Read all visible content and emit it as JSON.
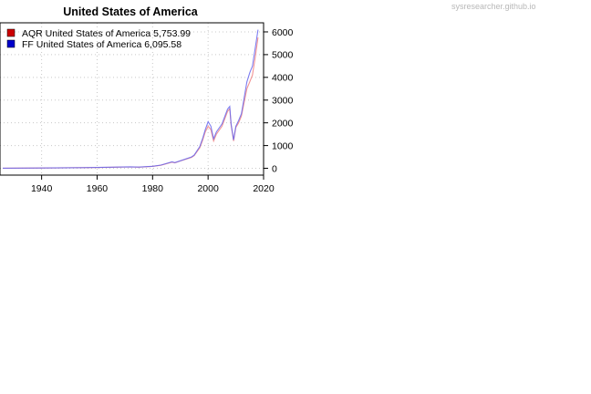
{
  "watermark": "sysresearcher.github.io",
  "chart_data": {
    "type": "line",
    "title": "United States of America",
    "xlabel": "",
    "ylabel": "",
    "xlim": [
      1925,
      2020
    ],
    "ylim": [
      -300,
      6400
    ],
    "x_ticks": [
      1940,
      1960,
      1980,
      2000,
      2020
    ],
    "y_ticks": [
      0,
      1000,
      2000,
      3000,
      4000,
      5000,
      6000
    ],
    "y_axis_side": "right",
    "grid": true,
    "legend_position": "top-left",
    "legend": [
      {
        "label": "AQR United States of America 5,753.99",
        "color": "#cc0000"
      },
      {
        "label": "FF United States of America 6,095.58",
        "color": "#0000cc"
      }
    ],
    "series": [
      {
        "name": "AQR United States of America",
        "color": "#f08080",
        "x": [
          1926,
          1940,
          1955,
          1965,
          1972,
          1975,
          1980,
          1983,
          1987,
          1988,
          1990,
          1994,
          1995,
          1997,
          1998,
          1999,
          2000,
          2001,
          2002,
          2003,
          2005,
          2007,
          2007.8,
          2008.3,
          2009.2,
          2010,
          2011,
          2012,
          2013,
          2014,
          2015,
          2016,
          2017,
          2018
        ],
        "y": [
          5,
          12,
          28,
          45,
          62,
          50,
          85,
          135,
          270,
          240,
          320,
          480,
          560,
          900,
          1230,
          1600,
          1850,
          1700,
          1200,
          1500,
          1850,
          2500,
          2620,
          1900,
          1200,
          1800,
          2000,
          2300,
          2900,
          3500,
          3800,
          4100,
          4900,
          5754
        ]
      },
      {
        "name": "FF United States of America",
        "color": "#6666ee",
        "x": [
          1926,
          1940,
          1955,
          1965,
          1972,
          1975,
          1980,
          1983,
          1987,
          1988,
          1990,
          1994,
          1995,
          1997,
          1998,
          1999,
          2000,
          2001,
          2002,
          2003,
          2005,
          2007,
          2007.8,
          2008.3,
          2009.2,
          2010,
          2011,
          2012,
          2013,
          2014,
          2015,
          2016,
          2017,
          2018
        ],
        "y": [
          5,
          12,
          30,
          48,
          65,
          52,
          90,
          140,
          280,
          250,
          330,
          500,
          580,
          950,
          1300,
          1700,
          2050,
          1850,
          1300,
          1600,
          1950,
          2600,
          2720,
          1950,
          1250,
          1850,
          2100,
          2400,
          3100,
          3800,
          4200,
          4500,
          5300,
          6096
        ]
      }
    ]
  }
}
